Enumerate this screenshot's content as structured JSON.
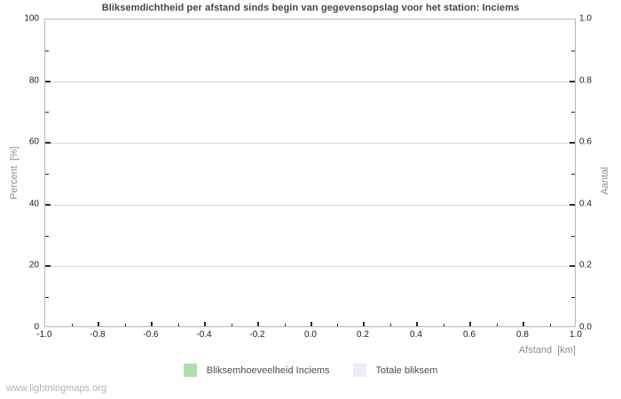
{
  "watermark": "www.lightningmaps.org",
  "chart_data": {
    "type": "bar",
    "title": "Bliksemdichtheid per afstand sinds begin van gegevensopslag voor het station: Inciems",
    "xlabel": "Afstand  [km]",
    "ylabel_left": "Percent  [%]",
    "ylabel_right": "Aantal",
    "xlim": [
      -1.0,
      1.0
    ],
    "ylim_left": [
      0,
      100
    ],
    "ylim_right": [
      0.0,
      1.0
    ],
    "grid": "horizontal-major-only",
    "legend_position": "bottom-center",
    "x_ticks": [
      {
        "v": -1.0,
        "label": "-1.0"
      },
      {
        "v": -0.8,
        "label": "-0.8"
      },
      {
        "v": -0.6,
        "label": "-0.6"
      },
      {
        "v": -0.4,
        "label": "-0.4"
      },
      {
        "v": -0.2,
        "label": "-0.2"
      },
      {
        "v": 0.0,
        "label": "0.0"
      },
      {
        "v": 0.2,
        "label": "0.2"
      },
      {
        "v": 0.4,
        "label": "0.4"
      },
      {
        "v": 0.6,
        "label": "0.6"
      },
      {
        "v": 0.8,
        "label": "0.8"
      },
      {
        "v": 1.0,
        "label": "1.0"
      }
    ],
    "x_minor_ticks": [
      -0.9,
      -0.7,
      -0.5,
      -0.3,
      -0.1,
      0.1,
      0.3,
      0.5,
      0.7,
      0.9
    ],
    "y_left_ticks": [
      {
        "v": 0,
        "label": "0"
      },
      {
        "v": 20,
        "label": "20"
      },
      {
        "v": 40,
        "label": "40"
      },
      {
        "v": 60,
        "label": "60"
      },
      {
        "v": 80,
        "label": "80"
      },
      {
        "v": 100,
        "label": "100"
      }
    ],
    "y_left_minor_ticks": [
      10,
      30,
      50,
      70,
      90
    ],
    "y_right_ticks": [
      {
        "v": 0.0,
        "label": "0.0"
      },
      {
        "v": 0.2,
        "label": "0.2"
      },
      {
        "v": 0.4,
        "label": "0.4"
      },
      {
        "v": 0.6,
        "label": "0.6"
      },
      {
        "v": 0.8,
        "label": "0.8"
      },
      {
        "v": 1.0,
        "label": "1.0"
      }
    ],
    "y_right_minor_ticks": [
      0.1,
      0.3,
      0.5,
      0.7,
      0.9
    ],
    "series": [
      {
        "name": "Bliksemhoeveelheid Inciems",
        "color": "#b1dcab",
        "values": []
      },
      {
        "name": "Totale bliksem",
        "color": "#ececfb",
        "values": []
      }
    ],
    "note": "empty plot - no data drawn"
  },
  "colors": {
    "background": "#ffffff",
    "gridline": "#d7d7d7",
    "plot_border": "#b7b7b7",
    "tick_mark": "#2b2b2b",
    "tick_label": "#1c1c1c",
    "title_text": "#454545",
    "axis_title_text": "#8c8c8c",
    "watermark_text": "#b2b2b2"
  }
}
